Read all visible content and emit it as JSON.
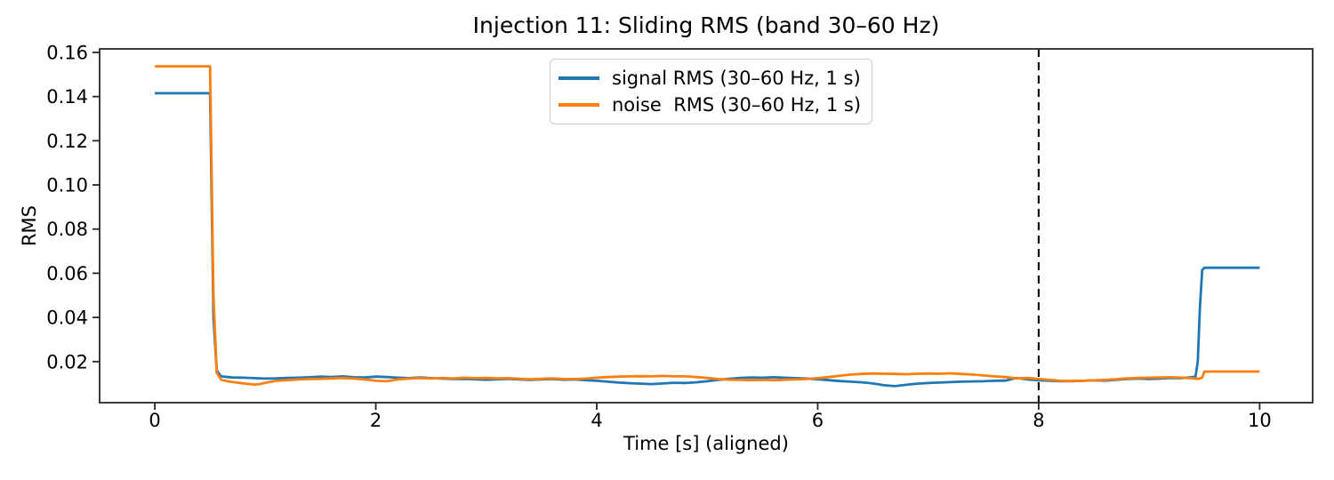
{
  "chart_data": {
    "type": "line",
    "title": "Injection 11: Sliding RMS (band 30–60 Hz)",
    "xlabel": "Time [s] (aligned)",
    "ylabel": "RMS",
    "xlim": [
      -0.5,
      10.48
    ],
    "ylim": [
      0.0014,
      0.1616
    ],
    "xticks": [
      0,
      2,
      4,
      6,
      8,
      10
    ],
    "xtick_labels": [
      "0",
      "2",
      "4",
      "6",
      "8",
      "10"
    ],
    "yticks": [
      0.02,
      0.04,
      0.06,
      0.08,
      0.1,
      0.12,
      0.14,
      0.16
    ],
    "ytick_labels": [
      "0.02",
      "0.04",
      "0.06",
      "0.08",
      "0.10",
      "0.12",
      "0.14",
      "0.16"
    ],
    "grid": false,
    "axis_color": "#262626",
    "legend": {
      "position": "upper center",
      "entries": [
        {
          "id": "signal",
          "label": "signal RMS (30–60 Hz, 1 s)",
          "color": "#1f77b4"
        },
        {
          "id": "noise",
          "label": "noise  RMS (30–60 Hz, 1 s)",
          "color": "#ff7f0e"
        }
      ]
    },
    "annotations": [
      {
        "type": "vline",
        "x": 8,
        "linestyle": "dashed",
        "color": "#000000"
      }
    ],
    "series": [
      {
        "id": "signal",
        "name": "signal RMS (30–60 Hz, 1 s)",
        "color": "#1f77b4",
        "points": [
          [
            0,
            0.1415
          ],
          [
            0.25,
            0.1415
          ],
          [
            0.5,
            0.1415
          ],
          [
            0.53,
            0.04
          ],
          [
            0.56,
            0.016
          ],
          [
            0.6,
            0.0133
          ],
          [
            0.7,
            0.0128
          ],
          [
            0.8,
            0.0127
          ],
          [
            0.9,
            0.0125
          ],
          [
            1.0,
            0.0123
          ],
          [
            1.1,
            0.0124
          ],
          [
            1.2,
            0.0126
          ],
          [
            1.3,
            0.0127
          ],
          [
            1.4,
            0.0129
          ],
          [
            1.5,
            0.0132
          ],
          [
            1.6,
            0.013
          ],
          [
            1.7,
            0.0133
          ],
          [
            1.8,
            0.0129
          ],
          [
            1.9,
            0.0128
          ],
          [
            2.0,
            0.0132
          ],
          [
            2.1,
            0.013
          ],
          [
            2.2,
            0.0127
          ],
          [
            2.3,
            0.0125
          ],
          [
            2.4,
            0.0128
          ],
          [
            2.5,
            0.0125
          ],
          [
            2.6,
            0.0123
          ],
          [
            2.7,
            0.0121
          ],
          [
            2.8,
            0.0122
          ],
          [
            2.9,
            0.012
          ],
          [
            3.0,
            0.0118
          ],
          [
            3.1,
            0.012
          ],
          [
            3.2,
            0.0122
          ],
          [
            3.3,
            0.0119
          ],
          [
            3.4,
            0.0117
          ],
          [
            3.5,
            0.0119
          ],
          [
            3.6,
            0.0121
          ],
          [
            3.7,
            0.0118
          ],
          [
            3.8,
            0.0119
          ],
          [
            3.9,
            0.0116
          ],
          [
            4.0,
            0.0113
          ],
          [
            4.1,
            0.0109
          ],
          [
            4.2,
            0.0105
          ],
          [
            4.3,
            0.0102
          ],
          [
            4.4,
            0.01
          ],
          [
            4.5,
            0.0098
          ],
          [
            4.6,
            0.0101
          ],
          [
            4.7,
            0.0104
          ],
          [
            4.8,
            0.0103
          ],
          [
            4.9,
            0.0106
          ],
          [
            5.0,
            0.0111
          ],
          [
            5.1,
            0.0117
          ],
          [
            5.2,
            0.0122
          ],
          [
            5.3,
            0.0126
          ],
          [
            5.4,
            0.0128
          ],
          [
            5.5,
            0.0127
          ],
          [
            5.6,
            0.0129
          ],
          [
            5.7,
            0.0127
          ],
          [
            5.8,
            0.0125
          ],
          [
            5.9,
            0.0123
          ],
          [
            6.0,
            0.012
          ],
          [
            6.1,
            0.0116
          ],
          [
            6.2,
            0.0112
          ],
          [
            6.3,
            0.0109
          ],
          [
            6.4,
            0.0106
          ],
          [
            6.5,
            0.0101
          ],
          [
            6.6,
            0.0093
          ],
          [
            6.7,
            0.0089
          ],
          [
            6.8,
            0.0095
          ],
          [
            6.9,
            0.01
          ],
          [
            7.0,
            0.0103
          ],
          [
            7.1,
            0.0105
          ],
          [
            7.2,
            0.0107
          ],
          [
            7.3,
            0.0109
          ],
          [
            7.4,
            0.011
          ],
          [
            7.5,
            0.0111
          ],
          [
            7.6,
            0.0113
          ],
          [
            7.7,
            0.0114
          ],
          [
            7.8,
            0.0126
          ],
          [
            7.9,
            0.0119
          ],
          [
            8.0,
            0.0115
          ],
          [
            8.1,
            0.0113
          ],
          [
            8.2,
            0.0111
          ],
          [
            8.3,
            0.0111
          ],
          [
            8.4,
            0.0113
          ],
          [
            8.5,
            0.0115
          ],
          [
            8.6,
            0.0114
          ],
          [
            8.7,
            0.0117
          ],
          [
            8.8,
            0.0121
          ],
          [
            8.9,
            0.0123
          ],
          [
            9.0,
            0.0121
          ],
          [
            9.1,
            0.0123
          ],
          [
            9.2,
            0.0126
          ],
          [
            9.3,
            0.0125
          ],
          [
            9.4,
            0.013
          ],
          [
            9.42,
            0.0133
          ],
          [
            9.44,
            0.02
          ],
          [
            9.46,
            0.045
          ],
          [
            9.48,
            0.0615
          ],
          [
            9.5,
            0.0625
          ],
          [
            9.7,
            0.0625
          ],
          [
            10.0,
            0.0625
          ]
        ]
      },
      {
        "id": "noise",
        "name": "noise RMS (30–60 Hz, 1 s)",
        "color": "#ff7f0e",
        "points": [
          [
            0,
            0.1537
          ],
          [
            0.25,
            0.1537
          ],
          [
            0.5,
            0.1537
          ],
          [
            0.53,
            0.05
          ],
          [
            0.56,
            0.015
          ],
          [
            0.6,
            0.0118
          ],
          [
            0.65,
            0.0112
          ],
          [
            0.7,
            0.0108
          ],
          [
            0.8,
            0.0101
          ],
          [
            0.9,
            0.0096
          ],
          [
            0.95,
            0.0098
          ],
          [
            1.0,
            0.0104
          ],
          [
            1.1,
            0.0113
          ],
          [
            1.2,
            0.0116
          ],
          [
            1.3,
            0.0119
          ],
          [
            1.4,
            0.0121
          ],
          [
            1.5,
            0.0122
          ],
          [
            1.6,
            0.0124
          ],
          [
            1.7,
            0.0126
          ],
          [
            1.8,
            0.0123
          ],
          [
            1.9,
            0.0119
          ],
          [
            2.0,
            0.0113
          ],
          [
            2.1,
            0.0111
          ],
          [
            2.2,
            0.0119
          ],
          [
            2.3,
            0.0123
          ],
          [
            2.4,
            0.0125
          ],
          [
            2.5,
            0.0123
          ],
          [
            2.6,
            0.0126
          ],
          [
            2.7,
            0.0124
          ],
          [
            2.8,
            0.0127
          ],
          [
            2.9,
            0.0125
          ],
          [
            3.0,
            0.0126
          ],
          [
            3.1,
            0.0124
          ],
          [
            3.2,
            0.0125
          ],
          [
            3.3,
            0.0122
          ],
          [
            3.4,
            0.012
          ],
          [
            3.5,
            0.0122
          ],
          [
            3.6,
            0.0124
          ],
          [
            3.7,
            0.0121
          ],
          [
            3.8,
            0.0121
          ],
          [
            3.9,
            0.0123
          ],
          [
            4.0,
            0.0127
          ],
          [
            4.1,
            0.013
          ],
          [
            4.2,
            0.0132
          ],
          [
            4.3,
            0.0133
          ],
          [
            4.4,
            0.0134
          ],
          [
            4.5,
            0.0133
          ],
          [
            4.6,
            0.0135
          ],
          [
            4.7,
            0.0133
          ],
          [
            4.8,
            0.0133
          ],
          [
            4.9,
            0.013
          ],
          [
            5.0,
            0.0126
          ],
          [
            5.1,
            0.0121
          ],
          [
            5.2,
            0.0118
          ],
          [
            5.3,
            0.0117
          ],
          [
            5.4,
            0.0116
          ],
          [
            5.5,
            0.0117
          ],
          [
            5.6,
            0.0116
          ],
          [
            5.7,
            0.0118
          ],
          [
            5.8,
            0.0119
          ],
          [
            5.9,
            0.0121
          ],
          [
            6.0,
            0.0125
          ],
          [
            6.1,
            0.013
          ],
          [
            6.2,
            0.0136
          ],
          [
            6.3,
            0.0141
          ],
          [
            6.4,
            0.0144
          ],
          [
            6.5,
            0.0146
          ],
          [
            6.6,
            0.0145
          ],
          [
            6.7,
            0.0144
          ],
          [
            6.8,
            0.0143
          ],
          [
            6.9,
            0.0145
          ],
          [
            7.0,
            0.0146
          ],
          [
            7.1,
            0.0145
          ],
          [
            7.2,
            0.0147
          ],
          [
            7.3,
            0.0144
          ],
          [
            7.4,
            0.0141
          ],
          [
            7.5,
            0.0137
          ],
          [
            7.6,
            0.0133
          ],
          [
            7.7,
            0.013
          ],
          [
            7.8,
            0.0124
          ],
          [
            7.9,
            0.0126
          ],
          [
            8.0,
            0.0121
          ],
          [
            8.1,
            0.0117
          ],
          [
            8.2,
            0.0113
          ],
          [
            8.3,
            0.0112
          ],
          [
            8.4,
            0.0113
          ],
          [
            8.5,
            0.0115
          ],
          [
            8.6,
            0.0117
          ],
          [
            8.7,
            0.012
          ],
          [
            8.8,
            0.0124
          ],
          [
            8.9,
            0.0126
          ],
          [
            9.0,
            0.0127
          ],
          [
            9.1,
            0.0128
          ],
          [
            9.2,
            0.0129
          ],
          [
            9.3,
            0.0127
          ],
          [
            9.4,
            0.0124
          ],
          [
            9.45,
            0.0122
          ],
          [
            9.48,
            0.0128
          ],
          [
            9.5,
            0.0155
          ],
          [
            9.7,
            0.0155
          ],
          [
            10.0,
            0.0155
          ]
        ]
      }
    ]
  }
}
